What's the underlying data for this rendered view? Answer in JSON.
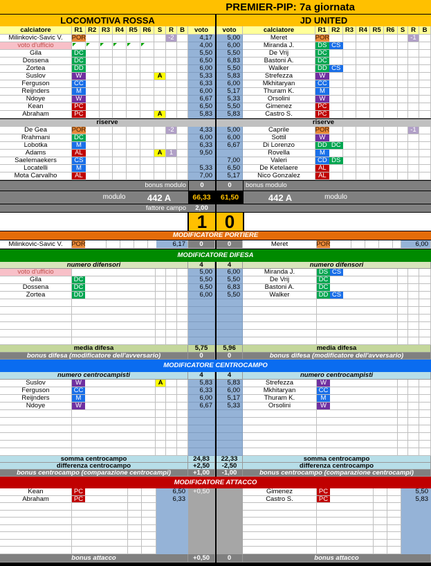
{
  "title": "PREMIER-PIP: 7a giornata",
  "role_colors": {
    "POR": "#e8893a",
    "DC": "#00a651",
    "DD": "#00a651",
    "DS": "#00a651",
    "W": "#7030a0",
    "CC": "#1a6fe8",
    "M": "#1a6fe8",
    "CS": "#1a6fe8",
    "CD": "#1a6fe8",
    "AL": "#c00000",
    "PC": "#c00000"
  },
  "colors": {
    "title": "#ffc000",
    "header": "#ffff99",
    "voto": "#95b3d7",
    "gray": "#808080",
    "grid": "#bfbfbf",
    "portiere": "#e46c0a",
    "difesa": "#008a00",
    "centrocampo": "#0a6cf0",
    "attacco": "#c00000",
    "difesa_light": "#c4d79b",
    "centro_light": "#b7dee8",
    "reserve_bar": "#c0c0c0",
    "ufficio": "#f8c0c8",
    "score": "#ffc000"
  },
  "headers": {
    "calciatore": "calciatore",
    "voto": "voto",
    "r": [
      "R1",
      "R2",
      "R3",
      "R4",
      "R5",
      "R6"
    ],
    "s": "S",
    "rc": "R",
    "b": "B",
    "riserve": "riserve"
  },
  "home": {
    "name": "LOCOMOTIVA ROSSA",
    "starters": [
      {
        "name": "Milinkovic-Savic V.",
        "roles": [
          "POR"
        ],
        "s": "",
        "r": "-2",
        "voto": "4,17"
      },
      {
        "name": "voto d'ufficio",
        "roles": [],
        "s": "",
        "r": "",
        "voto": "4,00",
        "ufficio": true
      },
      {
        "name": "Gila",
        "roles": [
          "DC"
        ],
        "s": "",
        "r": "",
        "voto": "5,50"
      },
      {
        "name": "Dossena",
        "roles": [
          "DC"
        ],
        "s": "",
        "r": "",
        "voto": "6,50"
      },
      {
        "name": "Zortea",
        "roles": [
          "DD"
        ],
        "s": "",
        "r": "",
        "voto": "6,00"
      },
      {
        "name": "Suslov",
        "roles": [
          "W"
        ],
        "s": "A",
        "r": "",
        "voto": "5,33"
      },
      {
        "name": "Ferguson",
        "roles": [
          "CC"
        ],
        "s": "",
        "r": "",
        "voto": "6,33"
      },
      {
        "name": "Reijnders",
        "roles": [
          "M"
        ],
        "s": "",
        "r": "",
        "voto": "6,00"
      },
      {
        "name": "Ndoye",
        "roles": [
          "W"
        ],
        "s": "",
        "r": "",
        "voto": "6,67"
      },
      {
        "name": "Kean",
        "roles": [
          "PC"
        ],
        "s": "",
        "r": "",
        "voto": "6,50"
      },
      {
        "name": "Abraham",
        "roles": [
          "PC"
        ],
        "s": "A",
        "r": "",
        "voto": "5,83"
      }
    ],
    "reserves": [
      {
        "name": "De Gea",
        "roles": [
          "POR"
        ],
        "s": "",
        "r": "-2",
        "voto": "4,33"
      },
      {
        "name": "Rrahmani",
        "roles": [
          "DC"
        ],
        "s": "",
        "r": "",
        "voto": "6,00"
      },
      {
        "name": "Lobotka",
        "roles": [
          "M"
        ],
        "s": "",
        "r": "",
        "voto": "6,33"
      },
      {
        "name": "Adams",
        "roles": [
          "AL"
        ],
        "s": "A",
        "r": "1",
        "voto": "9,50"
      },
      {
        "name": "Saelemaekers",
        "roles": [
          "CS"
        ],
        "s": "",
        "r": "",
        "voto": ""
      },
      {
        "name": "Locatelli",
        "roles": [
          "M"
        ],
        "s": "",
        "r": "",
        "voto": "5,33"
      },
      {
        "name": "Mota Carvalho",
        "roles": [
          "AL"
        ],
        "s": "",
        "r": "",
        "voto": "7,00"
      }
    ]
  },
  "away": {
    "name": "JD UNITED",
    "starters": [
      {
        "name": "Meret",
        "roles": [
          "POR"
        ],
        "s": "",
        "r": "-1",
        "voto": "5,00"
      },
      {
        "name": "Miranda J.",
        "roles": [
          "DS",
          "CS"
        ],
        "s": "",
        "r": "",
        "voto": "6,00"
      },
      {
        "name": "De Vrij",
        "roles": [
          "DC"
        ],
        "s": "",
        "r": "",
        "voto": "5,50"
      },
      {
        "name": "Bastoni A.",
        "roles": [
          "DC"
        ],
        "s": "",
        "r": "",
        "voto": "6,83"
      },
      {
        "name": "Walker",
        "roles": [
          "DD",
          "CS"
        ],
        "s": "",
        "r": "",
        "voto": "5,50"
      },
      {
        "name": "Strefezza",
        "roles": [
          "W"
        ],
        "s": "",
        "r": "",
        "voto": "5,83"
      },
      {
        "name": "Mkhitaryan",
        "roles": [
          "CC"
        ],
        "s": "",
        "r": "",
        "voto": "6,00"
      },
      {
        "name": "Thuram K.",
        "roles": [
          "M"
        ],
        "s": "",
        "r": "",
        "voto": "5,17"
      },
      {
        "name": "Orsolini",
        "roles": [
          "W"
        ],
        "s": "",
        "r": "",
        "voto": "5,33"
      },
      {
        "name": "Gimenez",
        "roles": [
          "PC"
        ],
        "s": "",
        "r": "",
        "voto": "5,50"
      },
      {
        "name": "Castro S.",
        "roles": [
          "PC"
        ],
        "s": "",
        "r": "",
        "voto": "5,83"
      }
    ],
    "reserves": [
      {
        "name": "Caprile",
        "roles": [
          "POR"
        ],
        "s": "",
        "r": "-1",
        "voto": "5,00"
      },
      {
        "name": "Sottil",
        "roles": [
          "W"
        ],
        "s": "",
        "r": "",
        "voto": "6,00"
      },
      {
        "name": "Di Lorenzo",
        "roles": [
          "DD",
          "DC"
        ],
        "s": "",
        "r": "",
        "voto": "6,67"
      },
      {
        "name": "Rovella",
        "roles": [
          "M"
        ],
        "s": "",
        "r": "",
        "voto": ""
      },
      {
        "name": "Valeri",
        "roles": [
          "CD",
          "DS"
        ],
        "s": "",
        "r": "",
        "voto": "7,00"
      },
      {
        "name": "De Ketelaere",
        "roles": [
          "AL"
        ],
        "s": "",
        "r": "",
        "voto": "6,50"
      },
      {
        "name": "Nico Gonzalez",
        "roles": [
          "AL"
        ],
        "s": "",
        "r": "",
        "voto": "5,17"
      }
    ]
  },
  "summary": {
    "bonus_modulo_label": "bonus modulo",
    "home_bonus_modulo": "0",
    "away_bonus_modulo": "0",
    "modulo_label": "modulo",
    "home_modulo": "442 A",
    "away_modulo": "442 A",
    "home_total": "66,33",
    "away_total": "61,50",
    "fattore_label": "fattore campo",
    "fattore_value": "2,00",
    "home_goals": "1",
    "away_goals": "0"
  },
  "portiere": {
    "title": "MODIFICATORE PORTIERE",
    "home": {
      "name": "Milinkovic-Savic V.",
      "role": "POR",
      "voto": "6,17",
      "mod": "0"
    },
    "away": {
      "name": "Meret",
      "role": "POR",
      "voto": "6,00",
      "mod": "0"
    }
  },
  "difesa": {
    "title": "MODIFICATORE DIFESA",
    "count_label": "numero difensori",
    "home_count": "4",
    "away_count": "4",
    "home_rows": [
      {
        "name": "voto d'ufficio",
        "roles": [],
        "voto": "5,00",
        "ufficio": true
      },
      {
        "name": "Gila",
        "roles": [
          "DC"
        ],
        "voto": "5,50"
      },
      {
        "name": "Dossena",
        "roles": [
          "DC"
        ],
        "voto": "6,50"
      },
      {
        "name": "Zortea",
        "roles": [
          "DD"
        ],
        "voto": "6,00"
      }
    ],
    "away_rows": [
      {
        "name": "Miranda J.",
        "roles": [
          "DS",
          "CS"
        ],
        "voto": "6,00"
      },
      {
        "name": "De Vrij",
        "roles": [
          "DC"
        ],
        "voto": "5,50"
      },
      {
        "name": "Bastoni A.",
        "roles": [
          "DC"
        ],
        "voto": "6,83"
      },
      {
        "name": "Walker",
        "roles": [
          "DD",
          "CS"
        ],
        "voto": "5,50"
      }
    ],
    "media_label": "media difesa",
    "home_media": "5,75",
    "away_media": "5,96",
    "bonus_label": "bonus difesa (modificatore dell'avversario)",
    "home_bonus": "0",
    "away_bonus": "0"
  },
  "centrocampo": {
    "title": "MODIFICATORE CENTROCAMPO",
    "count_label": "numero centrocampisti",
    "home_count": "4",
    "away_count": "4",
    "home_rows": [
      {
        "name": "Suslov",
        "roles": [
          "W"
        ],
        "s": "A",
        "voto": "5,83"
      },
      {
        "name": "Ferguson",
        "roles": [
          "CC"
        ],
        "voto": "6,33"
      },
      {
        "name": "Reijnders",
        "roles": [
          "M"
        ],
        "voto": "6,00"
      },
      {
        "name": "Ndoye",
        "roles": [
          "W"
        ],
        "voto": "6,67"
      }
    ],
    "away_rows": [
      {
        "name": "Strefezza",
        "roles": [
          "W"
        ],
        "voto": "5,83"
      },
      {
        "name": "Mkhitaryan",
        "roles": [
          "CC"
        ],
        "voto": "6,00"
      },
      {
        "name": "Thuram K.",
        "roles": [
          "M"
        ],
        "voto": "5,17"
      },
      {
        "name": "Orsolini",
        "roles": [
          "W"
        ],
        "voto": "5,33"
      }
    ],
    "somma_label": "somma centrocampo",
    "home_somma": "24,83",
    "away_somma": "22,33",
    "diff_label": "differenza centrocampo",
    "home_diff": "+2,50",
    "away_diff": "-2,50",
    "bonus_label": "bonus centrocampo (comparazione centrocampi)",
    "home_bonus": "+1,00",
    "away_bonus": "-1,00"
  },
  "attacco": {
    "title": "MODIFICATORE ATTACCO",
    "home_rows": [
      {
        "name": "Kean",
        "roles": [
          "PC"
        ],
        "voto": "6,50",
        "mod": "+0,50"
      },
      {
        "name": "Abraham",
        "roles": [
          "PC"
        ],
        "voto": "6,33",
        "mod": ""
      }
    ],
    "away_rows": [
      {
        "name": "Gimenez",
        "roles": [
          "PC"
        ],
        "voto": "5,50"
      },
      {
        "name": "Castro S.",
        "roles": [
          "PC"
        ],
        "voto": "5,83"
      }
    ],
    "bonus_label": "bonus attacco",
    "home_bonus": "+0,50",
    "away_bonus": "0"
  }
}
